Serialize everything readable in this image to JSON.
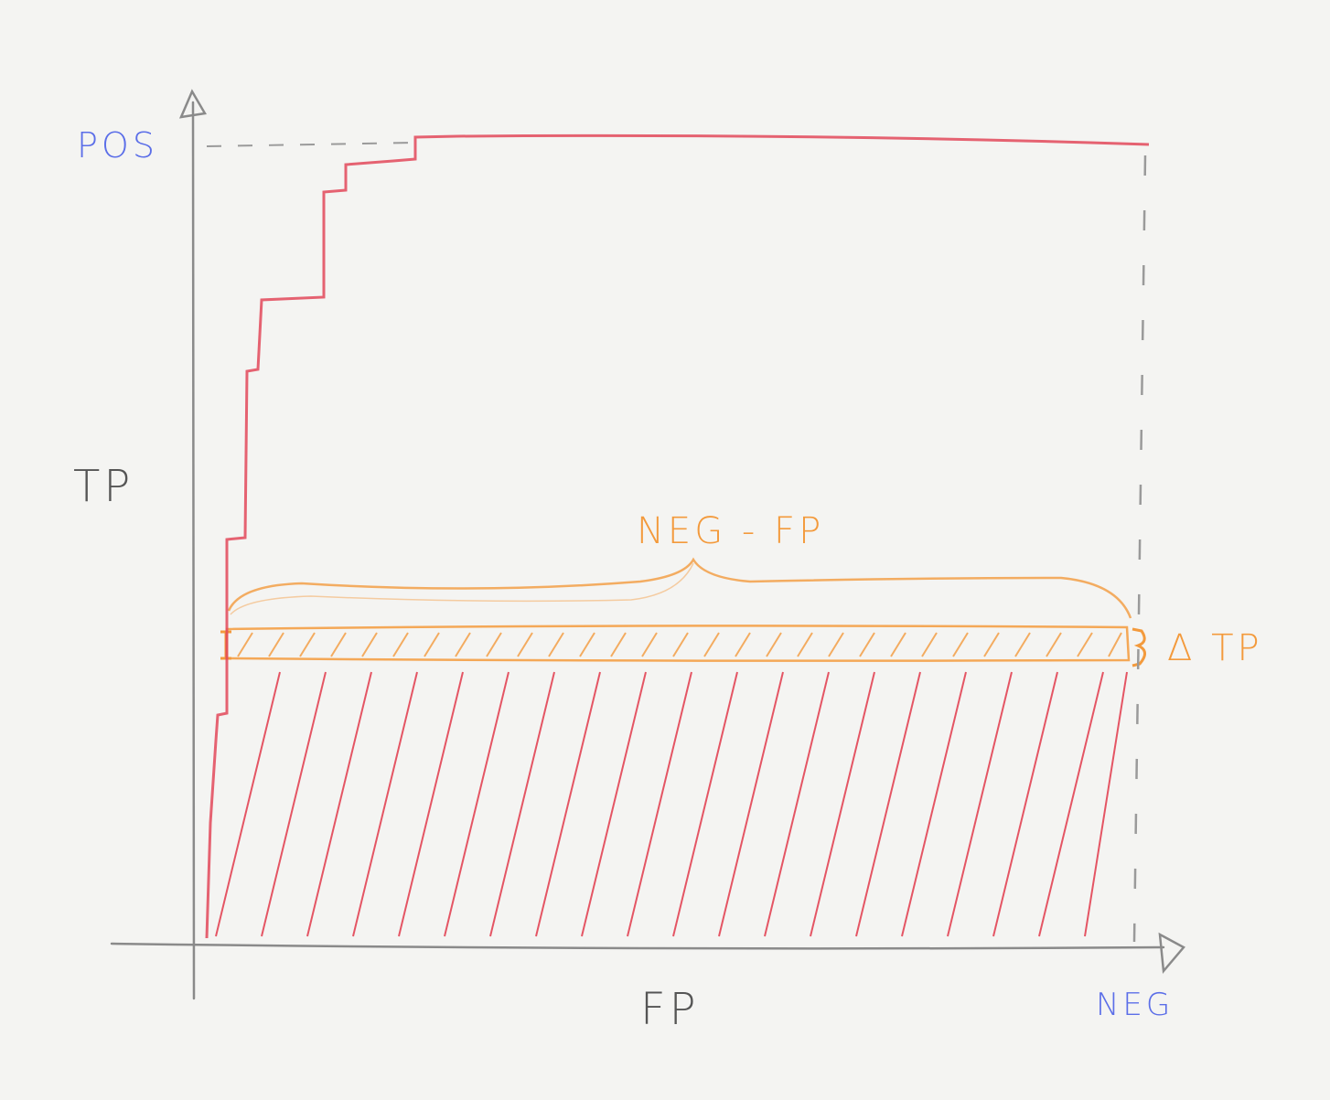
{
  "labels": {
    "pos": "POS",
    "neg": "NEG",
    "y_axis": "TP",
    "x_axis": "FP",
    "neg_fp": "NEG - FP",
    "delta_tp": "Δ TP"
  },
  "colors": {
    "axis": "#8a8a8a",
    "curve": "#e2485a",
    "hatch": "#e23a4c",
    "highlight": "#f39a3c",
    "pos_neg_label": "#5b6ee8",
    "axis_label": "#555555"
  }
}
